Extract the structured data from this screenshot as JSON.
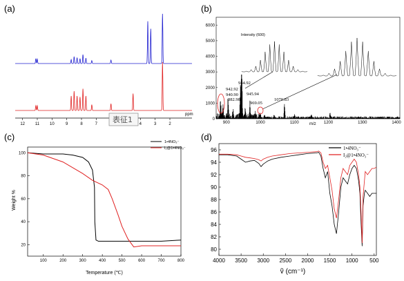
{
  "panels": {
    "a": {
      "label": "(a)",
      "stamp": "表征1",
      "x_unit": "ppm",
      "x_ticks": [
        "12",
        "11",
        "10",
        "9",
        "8",
        "7",
        "6",
        "5",
        "4",
        "3",
        "2"
      ],
      "colors": {
        "top": "#2020d0",
        "bottom": "#e02020"
      }
    },
    "b": {
      "label": "(b)",
      "y_ticks": [
        "0",
        "1000",
        "2000",
        "3000",
        "4000",
        "5000",
        "6000"
      ],
      "x_ticks": [
        "900",
        "1000",
        "1100",
        "1200",
        "1300",
        "1400"
      ],
      "x_unit": "m/z",
      "annotations": [
        "944.92",
        "942.92",
        "940.90",
        "882.98",
        "945.94",
        "969.05",
        "1070.83"
      ],
      "inset_label": "Intensity (600)",
      "color": "#000000",
      "circle_color": "#e02020"
    },
    "c": {
      "label": "(c)",
      "y_title": "Weight %",
      "x_title": "Temperature (℃)",
      "y_ticks": [
        "20",
        "40",
        "60",
        "80",
        "100"
      ],
      "x_ticks": [
        "100",
        "200",
        "300",
        "400",
        "500",
        "600",
        "700",
        "800"
      ],
      "legend": [
        "1•4NO₃⁻",
        "I₂@1•4NO₃⁻"
      ],
      "colors": [
        "#000000",
        "#e02020"
      ]
    },
    "d": {
      "label": "(d)",
      "x_title": "ṽ (cm⁻¹)",
      "y_ticks": [
        "80",
        "82",
        "84",
        "86",
        "88",
        "90",
        "92",
        "94",
        "96"
      ],
      "x_ticks": [
        "4000",
        "3500",
        "3000",
        "2500",
        "2000",
        "1500",
        "1000",
        "500"
      ],
      "legend": [
        "1•4NO₃⁻",
        "I₂@1•4NO₃⁻"
      ],
      "colors": [
        "#000000",
        "#e02020"
      ]
    }
  },
  "chart_data": [
    {
      "type": "line",
      "panel": "a",
      "xlabel": "ppm",
      "xlim": [
        12.5,
        0.5
      ],
      "series": [
        {
          "peaks": [
            [
              11.1,
              0.1
            ],
            [
              11.0,
              0.09
            ],
            [
              8.7,
              0.08
            ],
            [
              8.5,
              0.14
            ],
            [
              8.3,
              0.12
            ],
            [
              8.1,
              0.1
            ],
            [
              7.9,
              0.18
            ],
            [
              7.7,
              0.11
            ],
            [
              7.3,
              0.06
            ],
            [
              6.0,
              0.07
            ],
            [
              3.5,
              0.85
            ],
            [
              3.3,
              0.7
            ],
            [
              2.5,
              1.0
            ]
          ]
        },
        {
          "peaks": [
            [
              11.1,
              0.1
            ],
            [
              11.0,
              0.1
            ],
            [
              8.7,
              0.3
            ],
            [
              8.5,
              0.4
            ],
            [
              8.3,
              0.3
            ],
            [
              8.1,
              0.28
            ],
            [
              7.9,
              0.45
            ],
            [
              7.7,
              0.3
            ],
            [
              7.3,
              0.12
            ],
            [
              6.0,
              0.14
            ],
            [
              4.5,
              0.35
            ],
            [
              2.5,
              1.0
            ]
          ]
        }
      ]
    },
    {
      "type": "line",
      "panel": "b",
      "xlabel": "m/z",
      "ylim": [
        0,
        6500
      ],
      "xlim": [
        870,
        1410
      ],
      "peaks": [
        [
          882.98,
          1500
        ],
        [
          890,
          900
        ],
        [
          905,
          1200
        ],
        [
          920,
          700
        ],
        [
          940.9,
          1600
        ],
        [
          942.92,
          1800
        ],
        [
          944.92,
          2800
        ],
        [
          945.94,
          1500
        ],
        [
          955,
          600
        ],
        [
          969.05,
          1000
        ],
        [
          985,
          300
        ],
        [
          1000,
          250
        ],
        [
          1012,
          300
        ],
        [
          1040,
          250
        ],
        [
          1070.83,
          1000
        ],
        [
          1100,
          200
        ],
        [
          1150,
          200
        ],
        [
          1205,
          400
        ]
      ]
    },
    {
      "type": "line",
      "panel": "c",
      "xlabel": "Temperature (℃)",
      "ylabel": "Weight %",
      "xlim": [
        20,
        800
      ],
      "ylim": [
        10,
        105
      ],
      "series": [
        {
          "x": [
            20,
            100,
            200,
            250,
            300,
            330,
            350,
            360,
            362,
            368,
            380,
            400,
            450,
            500,
            600,
            700,
            800
          ],
          "y": [
            100,
            99,
            99,
            98,
            96,
            92,
            85,
            70,
            40,
            24,
            23,
            23,
            23,
            23,
            23,
            23,
            24
          ]
        },
        {
          "x": [
            20,
            100,
            200,
            300,
            350,
            400,
            430,
            450,
            480,
            500,
            530,
            560,
            600,
            700,
            800
          ],
          "y": [
            100,
            98,
            92,
            82,
            76,
            72,
            68,
            60,
            46,
            36,
            25,
            18,
            19,
            19,
            19
          ]
        }
      ]
    },
    {
      "type": "line",
      "panel": "d",
      "xlabel": "ṽ (cm⁻¹)",
      "xlim": [
        4000,
        450
      ],
      "ylim": [
        79,
        97
      ],
      "series": [
        {
          "x": [
            4000,
            3800,
            3600,
            3500,
            3400,
            3300,
            3200,
            3100,
            3050,
            3000,
            2900,
            2800,
            2600,
            2400,
            2200,
            2000,
            1800,
            1750,
            1700,
            1650,
            1600,
            1550,
            1500,
            1450,
            1400,
            1350,
            1300,
            1250,
            1200,
            1150,
            1100,
            1050,
            1000,
            950,
            900,
            850,
            820,
            800,
            770,
            750,
            720,
            700,
            650,
            600,
            550,
            500,
            450
          ],
          "y": [
            95.2,
            95.2,
            95.0,
            94.5,
            94.0,
            94.2,
            94.3,
            93.8,
            93.3,
            93.7,
            94.2,
            94.5,
            94.8,
            95.0,
            95.2,
            95.4,
            95.5,
            95.6,
            95.0,
            93.0,
            91.5,
            92.5,
            89.0,
            87.0,
            84.0,
            82.5,
            86.0,
            90.0,
            91.5,
            91.0,
            90.5,
            92.0,
            93.0,
            93.5,
            93.0,
            91.0,
            89.0,
            85.0,
            80.5,
            87.0,
            89.0,
            89.5,
            89.0,
            88.5,
            89.0,
            89.0,
            89.0
          ]
        },
        {
          "x": [
            4000,
            3800,
            3600,
            3500,
            3400,
            3300,
            3200,
            3100,
            3050,
            3000,
            2900,
            2800,
            2600,
            2400,
            2200,
            2000,
            1800,
            1750,
            1700,
            1650,
            1600,
            1550,
            1500,
            1450,
            1400,
            1350,
            1300,
            1250,
            1200,
            1150,
            1100,
            1050,
            1000,
            950,
            900,
            850,
            820,
            800,
            770,
            750,
            720,
            700,
            650,
            600,
            550,
            500,
            450
          ],
          "y": [
            95.3,
            95.3,
            95.2,
            95.0,
            94.8,
            94.7,
            94.6,
            94.4,
            94.2,
            94.5,
            94.8,
            95.0,
            95.2,
            95.4,
            95.5,
            95.6,
            95.7,
            95.8,
            95.5,
            94.0,
            93.0,
            93.5,
            91.5,
            89.5,
            86.5,
            85.0,
            88.0,
            91.5,
            93.0,
            92.5,
            92.0,
            93.5,
            94.0,
            94.5,
            94.0,
            92.0,
            90.0,
            87.0,
            81.0,
            88.5,
            91.0,
            92.5,
            92.0,
            92.5,
            93.0,
            93.0,
            93.2
          ]
        }
      ]
    }
  ]
}
